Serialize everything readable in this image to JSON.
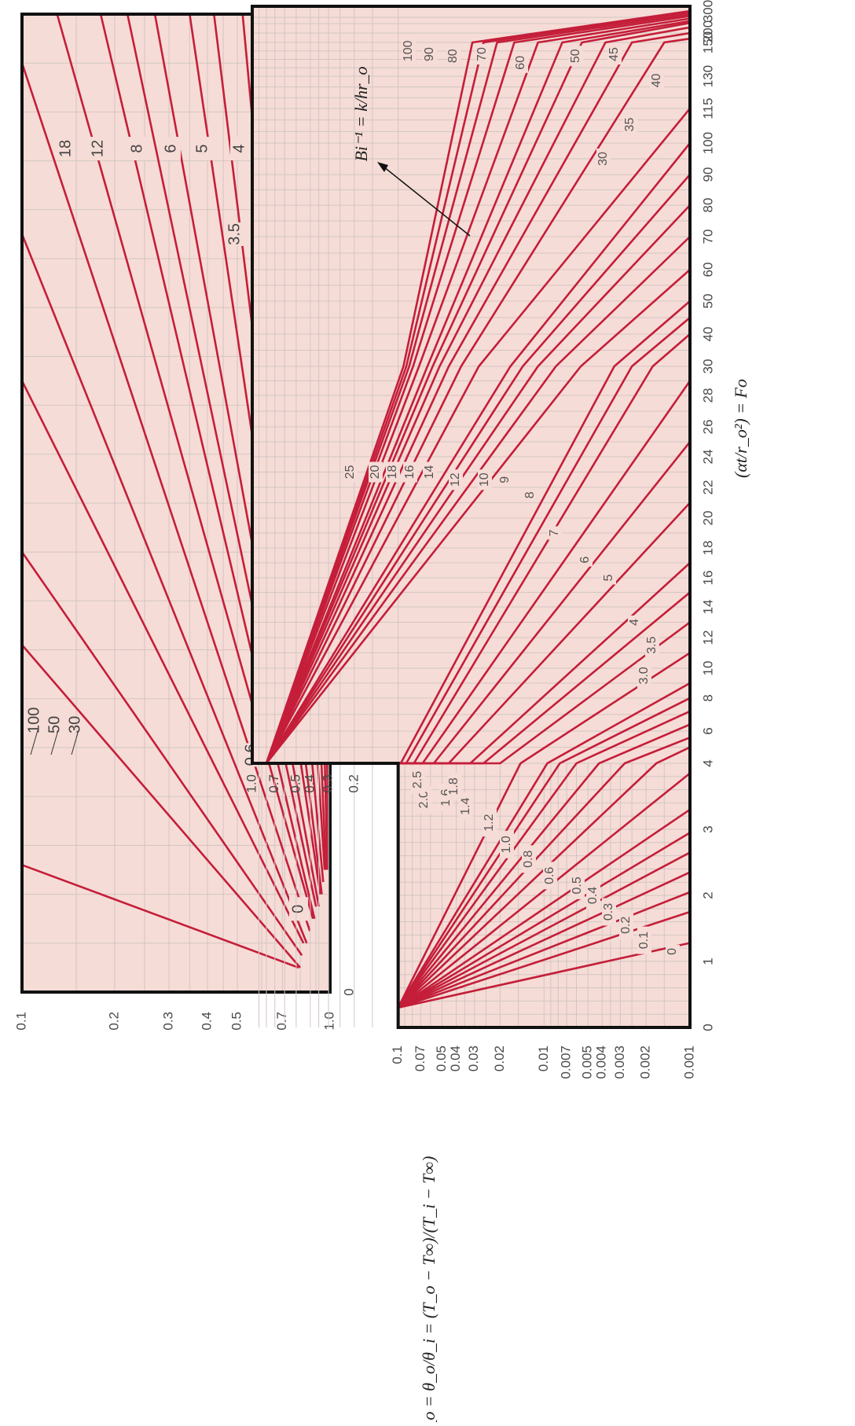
{
  "colors": {
    "plot_bg": "#f6dcd6",
    "grid": "#d2c6c4",
    "curve": "#c41e3a",
    "frame": "#111111"
  },
  "chart_data": [
    {
      "type": "line",
      "description_panel": "left",
      "x_scale": "linear",
      "y_scale": "log",
      "xlim": [
        0,
        4
      ],
      "ylim": [
        0.1,
        1.0
      ],
      "x_ticks": [
        "0",
        "1",
        "2",
        "3",
        "4"
      ],
      "y_ticks": [
        "1.0",
        "0.7",
        "0.5",
        "0.4",
        "0.3",
        "0.2",
        "0.1"
      ],
      "grid": true,
      "series": [
        {
          "name": "0",
          "points": [
            [
              0.1,
              0.79
            ],
            [
              0.52,
              0.1
            ]
          ]
        },
        {
          "name": "0.6",
          "points": [
            [
              0.1,
              0.8
            ],
            [
              1.42,
              0.1
            ]
          ]
        },
        {
          "name": "0.8",
          "points": [
            [
              0.15,
              0.81
            ],
            [
              1.8,
              0.1
            ]
          ]
        },
        {
          "name": "1.2",
          "points": [
            [
              0.2,
              0.82
            ],
            [
              2.5,
              0.1
            ]
          ]
        },
        {
          "name": "1.6",
          "points": [
            [
              0.2,
              0.84
            ],
            [
              3.1,
              0.1
            ]
          ]
        },
        {
          "name": "2.0",
          "points": [
            [
              0.25,
              0.86
            ],
            [
              3.8,
              0.1
            ]
          ]
        },
        {
          "name": "2.5",
          "points": [
            [
              0.3,
              0.88
            ],
            [
              4.0,
              0.13
            ]
          ]
        },
        {
          "name": "3.0",
          "points": [
            [
              0.3,
              0.89
            ],
            [
              4.0,
              0.18
            ]
          ]
        },
        {
          "name": "3.5",
          "points": [
            [
              0.35,
              0.9
            ],
            [
              4.0,
              0.22
            ]
          ]
        },
        {
          "name": "4",
          "points": [
            [
              0.35,
              0.92
            ],
            [
              4.0,
              0.27
            ]
          ]
        },
        {
          "name": "5",
          "points": [
            [
              0.4,
              0.93
            ],
            [
              4.0,
              0.35
            ]
          ]
        },
        {
          "name": "6",
          "points": [
            [
              0.4,
              0.94
            ],
            [
              4.0,
              0.42
            ]
          ]
        },
        {
          "name": "8",
          "points": [
            [
              0.45,
              0.95
            ],
            [
              4.0,
              0.52
            ]
          ]
        },
        {
          "name": "12",
          "points": [
            [
              0.5,
              0.96
            ],
            [
              4.0,
              0.64
            ]
          ]
        },
        {
          "name": "18",
          "points": [
            [
              0.5,
              0.97
            ],
            [
              4.0,
              0.74
            ]
          ]
        },
        {
          "name": "30",
          "points": [
            [
              0.5,
              0.98
            ],
            [
              4.0,
              0.84
            ]
          ]
        },
        {
          "name": "50",
          "points": [
            [
              0.5,
              0.99
            ],
            [
              4.0,
              0.9
            ]
          ]
        },
        {
          "name": "100",
          "points": [
            [
              0.5,
              0.995
            ],
            [
              4.0,
              0.95
            ]
          ]
        }
      ]
    },
    {
      "type": "line",
      "description_panel": "right",
      "x_scale": "piecewise-linear",
      "y_scale": "log",
      "xlim": [
        0,
        300
      ],
      "ylim": [
        0.001,
        1.0
      ],
      "x_ticks": [
        "0",
        "1",
        "2",
        "3",
        "4",
        "6",
        "8",
        "10",
        "12",
        "14",
        "16",
        "18",
        "20",
        "22",
        "24",
        "26",
        "28",
        "30",
        "40",
        "50",
        "60",
        "70",
        "80",
        "90",
        "100",
        "115",
        "130",
        "150",
        "200",
        "300"
      ],
      "y_ticks_upper": [
        "1.0",
        "0.7",
        "0.5",
        "0.4",
        "0.3",
        "0.2"
      ],
      "y_ticks_lower": [
        "0.1",
        "0.07",
        "0.05",
        "0.04",
        "0.03",
        "0.02",
        "0.01",
        "0.007",
        "0.005",
        "0.004",
        "0.003",
        "0.002",
        "0.001"
      ],
      "xlabel": "(αt/r_o²) = Fo",
      "ylabel": "θ*_o = θ_o/θ_i = (T_o − T∞)/(T_i − T∞)",
      "annotation": "Bi⁻¹ = k/hr_o",
      "grid": true,
      "series": [
        {
          "name": "0",
          "points": [
            [
              0.3,
              0.1
            ],
            [
              1.28,
              0.001
            ]
          ]
        },
        {
          "name": "0.1",
          "points": [
            [
              0.3,
              0.1
            ],
            [
              1.75,
              0.001
            ]
          ]
        },
        {
          "name": "0.2",
          "points": [
            [
              0.3,
              0.1
            ],
            [
              2.05,
              0.001
            ]
          ]
        },
        {
          "name": "0.3",
          "points": [
            [
              0.3,
              0.1
            ],
            [
              2.35,
              0.001
            ]
          ]
        },
        {
          "name": "0.4",
          "points": [
            [
              0.3,
              0.1
            ],
            [
              2.65,
              0.001
            ]
          ]
        },
        {
          "name": "0.5",
          "points": [
            [
              0.3,
              0.1
            ],
            [
              2.95,
              0.001
            ]
          ]
        },
        {
          "name": "0.6",
          "points": [
            [
              0.3,
              0.1
            ],
            [
              3.3,
              0.001
            ]
          ]
        },
        {
          "name": "0.8",
          "points": [
            [
              0.3,
              0.1
            ],
            [
              3.85,
              0.001
            ]
          ]
        },
        {
          "name": "1.0",
          "points": [
            [
              0.3,
              0.1
            ],
            [
              4.0,
              0.0017
            ],
            [
              5.0,
              0.001
            ]
          ]
        },
        {
          "name": "1.2",
          "points": [
            [
              0.3,
              0.1
            ],
            [
              4.0,
              0.0028
            ],
            [
              5.6,
              0.001
            ]
          ]
        },
        {
          "name": "1.4",
          "points": [
            [
              0.3,
              0.1
            ],
            [
              4.0,
              0.0042
            ],
            [
              6.4,
              0.001
            ]
          ]
        },
        {
          "name": "1.6",
          "points": [
            [
              0.3,
              0.1
            ],
            [
              4.0,
              0.006
            ],
            [
              7.2,
              0.001
            ]
          ]
        },
        {
          "name": "1.8",
          "points": [
            [
              0.3,
              0.1
            ],
            [
              4.0,
              0.0078
            ],
            [
              8.0,
              0.001
            ]
          ]
        },
        {
          "name": "2.0",
          "points": [
            [
              0.3,
              0.1
            ],
            [
              4.0,
              0.0095
            ],
            [
              9.0,
              0.001
            ]
          ]
        },
        {
          "name": "2.5",
          "points": [
            [
              0.3,
              0.1
            ],
            [
              4.0,
              0.0145
            ],
            [
              11.0,
              0.001
            ]
          ]
        },
        {
          "name": "3.0",
          "points": [
            [
              4.0,
              0.8
            ],
            [
              4.0,
              0.02
            ],
            [
              13.0,
              0.001
            ]
          ]
        },
        {
          "name": "3.5",
          "points": [
            [
              4.0,
              0.8
            ],
            [
              4.0,
              0.026
            ],
            [
              15.0,
              0.001
            ]
          ]
        },
        {
          "name": "4",
          "points": [
            [
              4.0,
              0.8
            ],
            [
              4.0,
              0.032
            ],
            [
              17.0,
              0.001
            ]
          ]
        },
        {
          "name": "5",
          "points": [
            [
              4.0,
              0.8
            ],
            [
              4.0,
              0.045
            ],
            [
              21.0,
              0.001
            ]
          ]
        },
        {
          "name": "6",
          "points": [
            [
              4.0,
              0.8
            ],
            [
              4.0,
              0.057
            ],
            [
              25.0,
              0.001
            ]
          ]
        },
        {
          "name": "7",
          "points": [
            [
              4.0,
              0.8
            ],
            [
              4.0,
              0.068
            ],
            [
              29.0,
              0.001
            ]
          ]
        },
        {
          "name": "8",
          "points": [
            [
              4.0,
              0.8
            ],
            [
              4.0,
              0.078
            ],
            [
              30.0,
              0.0018
            ],
            [
              40.0,
              0.001
            ]
          ]
        },
        {
          "name": "9",
          "points": [
            [
              4.0,
              0.8
            ],
            [
              4.0,
              0.088
            ],
            [
              30.0,
              0.0025
            ],
            [
              45.0,
              0.001
            ]
          ]
        },
        {
          "name": "10",
          "points": [
            [
              4.0,
              0.8
            ],
            [
              4.0,
              0.096
            ],
            [
              30.0,
              0.0033
            ],
            [
              50.0,
              0.001
            ]
          ]
        },
        {
          "name": "12",
          "points": [
            [
              4.0,
              0.8
            ],
            [
              30.0,
              0.0056
            ],
            [
              60.0,
              0.001
            ]
          ]
        },
        {
          "name": "14",
          "points": [
            [
              4.0,
              0.8
            ],
            [
              30.0,
              0.0083
            ],
            [
              70.0,
              0.001
            ]
          ]
        },
        {
          "name": "16",
          "points": [
            [
              4.0,
              0.8
            ],
            [
              30.0,
              0.011
            ],
            [
              80.0,
              0.001
            ]
          ]
        },
        {
          "name": "18",
          "points": [
            [
              4.0,
              0.8
            ],
            [
              30.0,
              0.014
            ],
            [
              90.0,
              0.001
            ]
          ]
        },
        {
          "name": "20",
          "points": [
            [
              4.0,
              0.8
            ],
            [
              30.0,
              0.017
            ],
            [
              100.0,
              0.001
            ]
          ]
        },
        {
          "name": "25",
          "points": [
            [
              4.0,
              0.8
            ],
            [
              30.0,
              0.028
            ],
            [
              115.0,
              0.001
            ]
          ]
        },
        {
          "name": "30",
          "points": [
            [
              4.0,
              0.8
            ],
            [
              30.0,
              0.037
            ],
            [
              150.0,
              0.0015
            ],
            [
              160.0,
              0.001
            ]
          ]
        },
        {
          "name": "35",
          "points": [
            [
              4.0,
              0.8
            ],
            [
              30.0,
              0.045
            ],
            [
              150.0,
              0.0025
            ],
            [
              175.0,
              0.001
            ]
          ]
        },
        {
          "name": "40",
          "points": [
            [
              4.0,
              0.8
            ],
            [
              30.0,
              0.052
            ],
            [
              150.0,
              0.0038
            ],
            [
              190.0,
              0.001
            ]
          ]
        },
        {
          "name": "45",
          "points": [
            [
              4.0,
              0.8
            ],
            [
              30.0,
              0.058
            ],
            [
              150.0,
              0.0055
            ],
            [
              205.0,
              0.001
            ]
          ]
        },
        {
          "name": "50",
          "points": [
            [
              4.0,
              0.8
            ],
            [
              30.0,
              0.063
            ],
            [
              150.0,
              0.0075
            ],
            [
              220.0,
              0.001
            ]
          ]
        },
        {
          "name": "60",
          "points": [
            [
              4.0,
              0.8
            ],
            [
              30.0,
              0.072
            ],
            [
              150.0,
              0.011
            ],
            [
              240.0,
              0.001
            ]
          ]
        },
        {
          "name": "70",
          "points": [
            [
              4.0,
              0.8
            ],
            [
              30.0,
              0.079
            ],
            [
              150.0,
              0.016
            ],
            [
              260.0,
              0.001
            ]
          ]
        },
        {
          "name": "80",
          "points": [
            [
              4.0,
              0.8
            ],
            [
              30.0,
              0.084
            ],
            [
              150.0,
              0.021
            ],
            [
              275.0,
              0.001
            ]
          ]
        },
        {
          "name": "90",
          "points": [
            [
              4.0,
              0.8
            ],
            [
              30.0,
              0.088
            ],
            [
              150.0,
              0.026
            ],
            [
              290.0,
              0.001
            ]
          ]
        },
        {
          "name": "100",
          "points": [
            [
              4.0,
              0.8
            ],
            [
              30.0,
              0.092
            ],
            [
              150.0,
              0.031
            ],
            [
              300.0,
              0.001
            ]
          ]
        }
      ]
    }
  ]
}
